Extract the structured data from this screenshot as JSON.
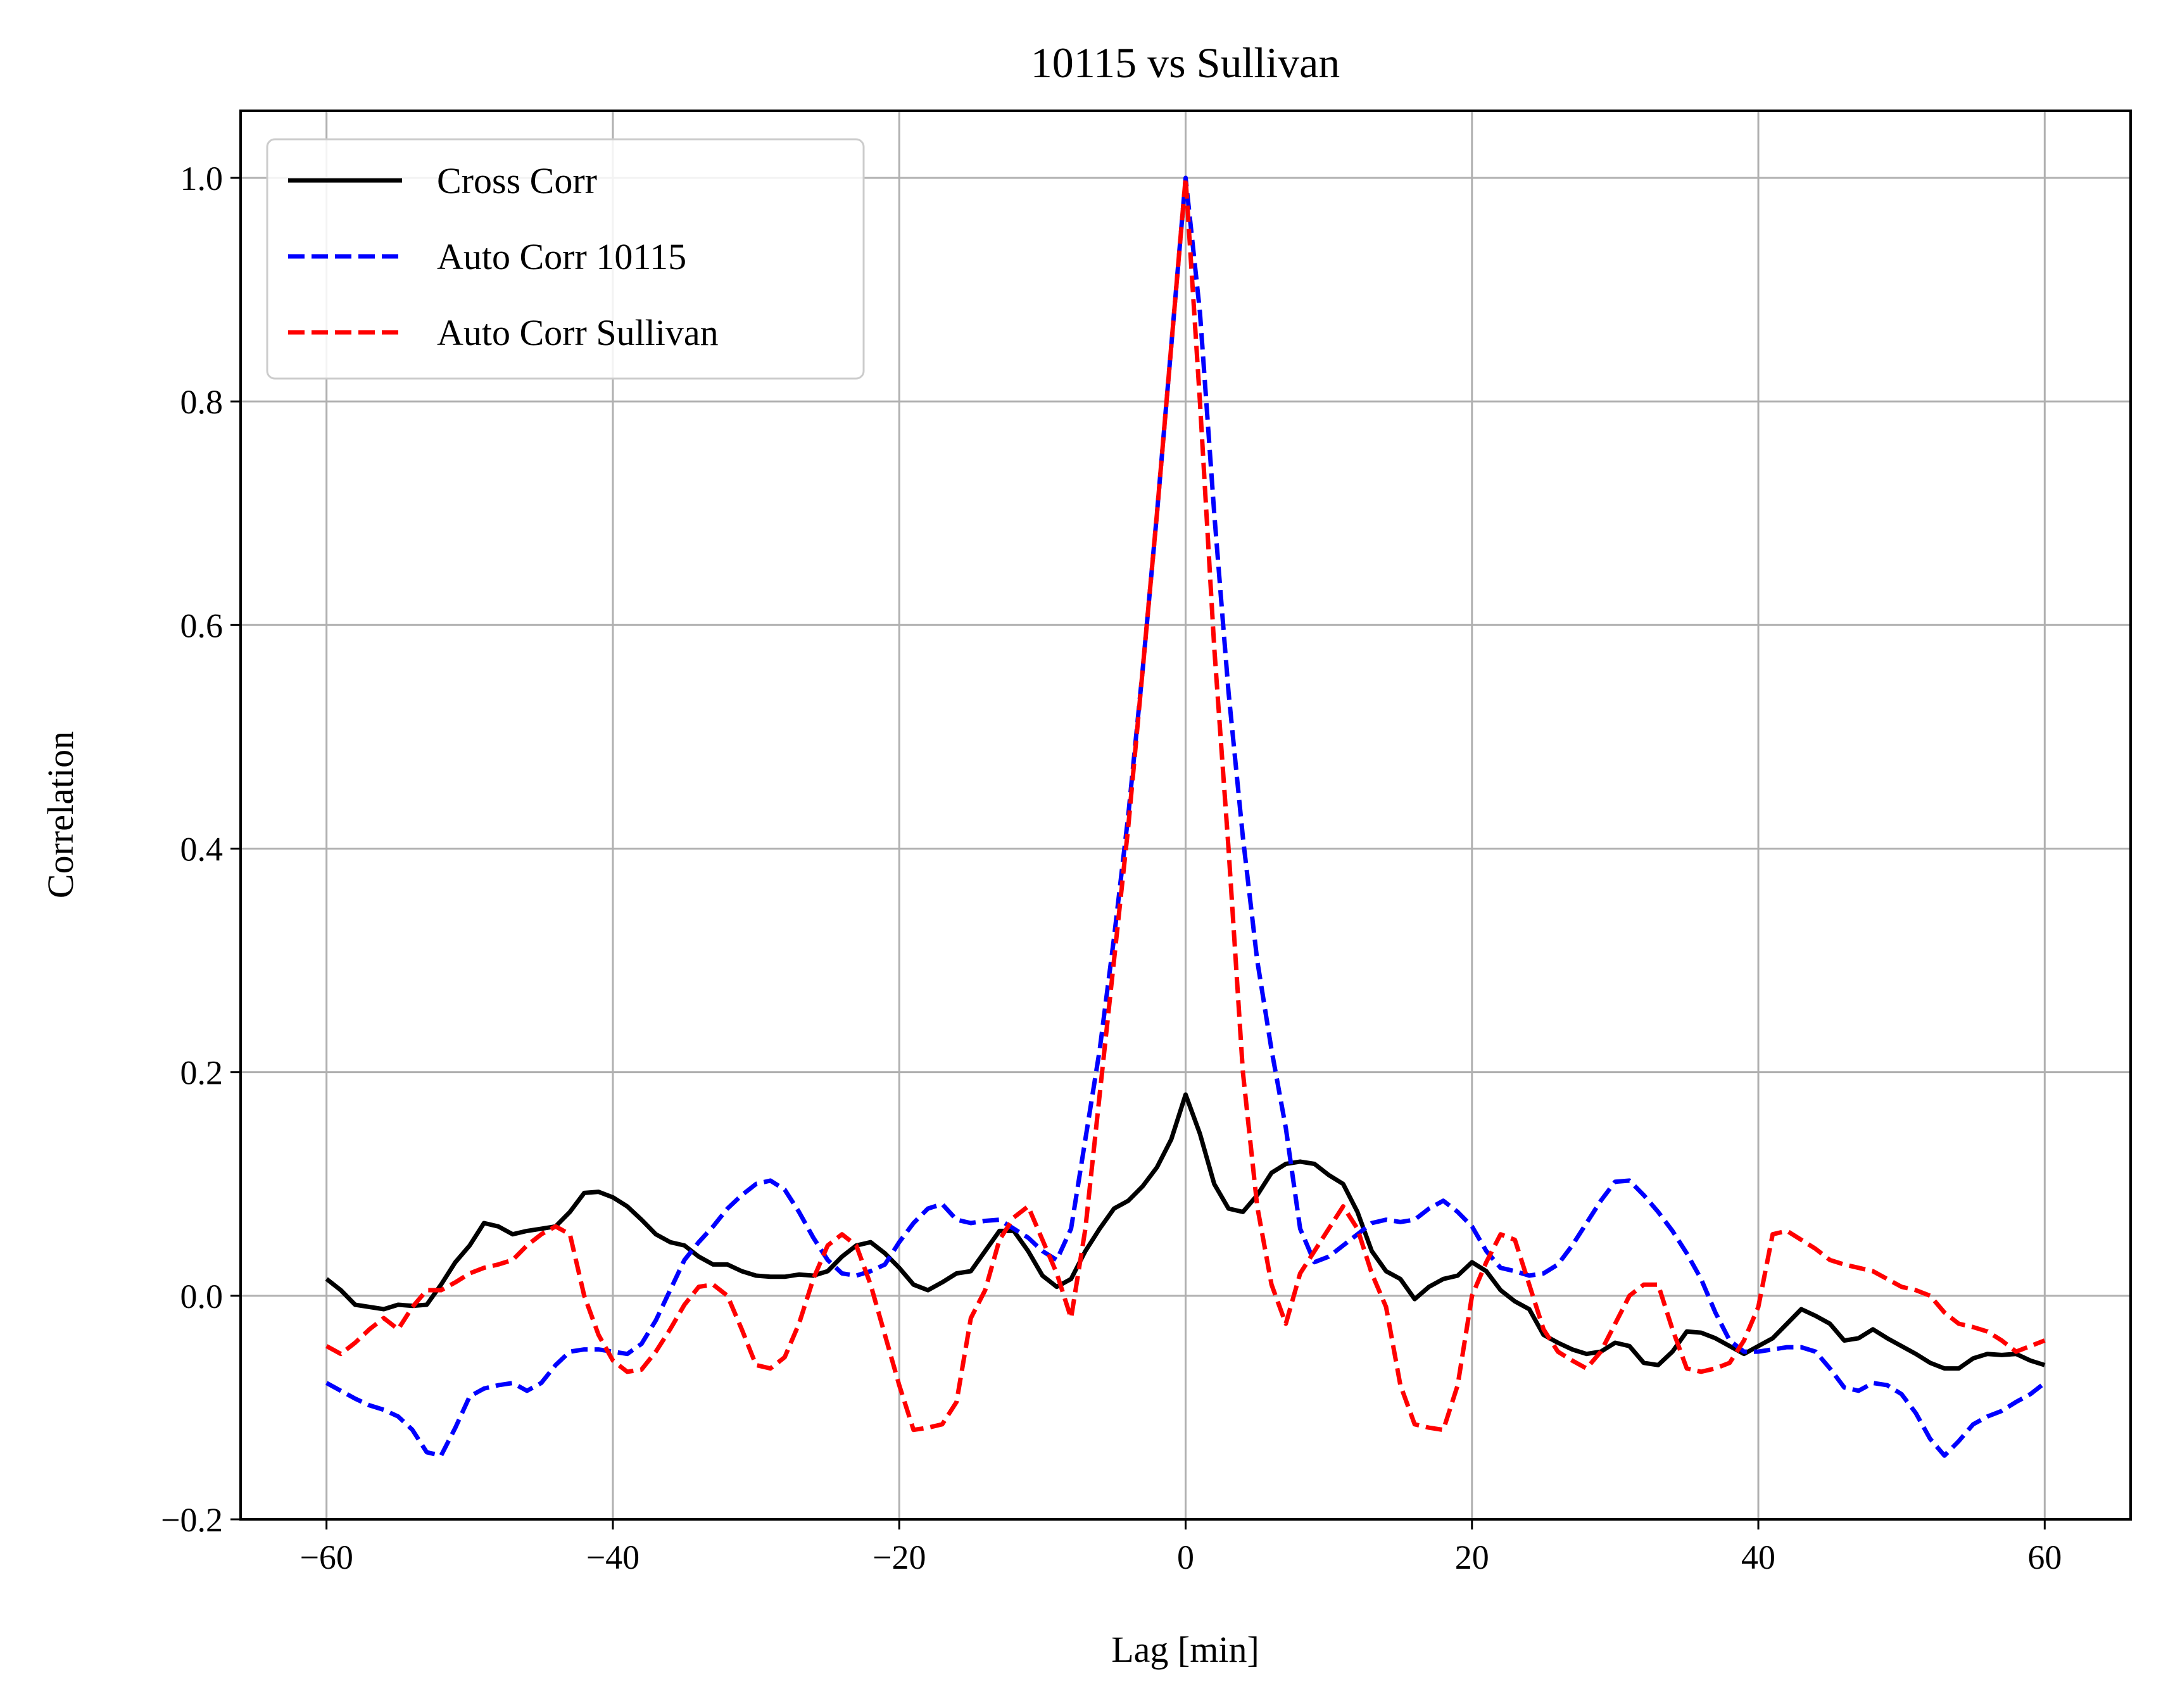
{
  "chart_data": {
    "type": "line",
    "title": "10115 vs Sullivan",
    "xlabel": "Lag [min]",
    "ylabel": "Correlation",
    "xlim": [
      -66,
      66
    ],
    "ylim": [
      -0.2,
      1.06
    ],
    "xticks": [
      -60,
      -40,
      -20,
      0,
      20,
      40,
      60
    ],
    "xtick_labels": [
      "−60",
      "−40",
      "−20",
      "0",
      "20",
      "40",
      "60"
    ],
    "yticks": [
      -0.2,
      0.0,
      0.2,
      0.4,
      0.6,
      0.8,
      1.0
    ],
    "ytick_labels": [
      "−0.2",
      "0.0",
      "0.2",
      "0.4",
      "0.6",
      "0.8",
      "1.0"
    ],
    "grid": true,
    "legend_position": "upper-left",
    "x": [
      -60,
      -59,
      -58,
      -57,
      -56,
      -55,
      -54,
      -53,
      -52,
      -51,
      -50,
      -49,
      -48,
      -47,
      -46,
      -45,
      -44,
      -43,
      -42,
      -41,
      -40,
      -39,
      -38,
      -37,
      -36,
      -35,
      -34,
      -33,
      -32,
      -31,
      -30,
      -29,
      -28,
      -27,
      -26,
      -25,
      -24,
      -23,
      -22,
      -21,
      -20,
      -19,
      -18,
      -17,
      -16,
      -15,
      -14,
      -13,
      -12,
      -11,
      -10,
      -9,
      -8,
      -7,
      -6,
      -5,
      -4,
      -3,
      -2,
      -1,
      0,
      1,
      2,
      3,
      4,
      5,
      6,
      7,
      8,
      9,
      10,
      11,
      12,
      13,
      14,
      15,
      16,
      17,
      18,
      19,
      20,
      21,
      22,
      23,
      24,
      25,
      26,
      27,
      28,
      29,
      30,
      31,
      32,
      33,
      34,
      35,
      36,
      37,
      38,
      39,
      40,
      41,
      42,
      43,
      44,
      45,
      46,
      47,
      48,
      49,
      50,
      51,
      52,
      53,
      54,
      55,
      56,
      57,
      58,
      59,
      60
    ],
    "series": [
      {
        "name": "Cross Corr",
        "color": "#000000",
        "dash": "solid",
        "values": [
          0.015,
          0.005,
          -0.008,
          -0.01,
          -0.012,
          -0.008,
          -0.009,
          -0.008,
          0.01,
          0.03,
          0.045,
          0.065,
          0.062,
          0.055,
          0.058,
          0.06,
          0.062,
          0.075,
          0.092,
          0.093,
          0.088,
          0.08,
          0.068,
          0.055,
          0.048,
          0.045,
          0.035,
          0.028,
          0.028,
          0.022,
          0.018,
          0.017,
          0.017,
          0.019,
          0.018,
          0.022,
          0.035,
          0.045,
          0.048,
          0.038,
          0.025,
          0.01,
          0.005,
          0.012,
          0.02,
          0.022,
          0.04,
          0.058,
          0.058,
          0.04,
          0.018,
          0.008,
          0.015,
          0.04,
          0.06,
          0.078,
          0.085,
          0.098,
          0.115,
          0.14,
          0.18,
          0.145,
          0.1,
          0.078,
          0.075,
          0.09,
          0.11,
          0.118,
          0.12,
          0.118,
          0.108,
          0.1,
          0.075,
          0.04,
          0.022,
          0.015,
          -0.003,
          0.008,
          0.015,
          0.018,
          0.03,
          0.022,
          0.005,
          -0.005,
          -0.012,
          -0.035,
          -0.042,
          -0.048,
          -0.052,
          -0.05,
          -0.042,
          -0.045,
          -0.06,
          -0.062,
          -0.05,
          -0.032,
          -0.033,
          -0.038,
          -0.045,
          -0.052,
          -0.045,
          -0.038,
          -0.025,
          -0.012,
          -0.018,
          -0.025,
          -0.04,
          -0.038,
          -0.03,
          -0.038,
          -0.045,
          -0.052,
          -0.06,
          -0.065,
          -0.065,
          -0.056,
          -0.052,
          -0.053,
          -0.052,
          -0.058,
          -0.062
        ]
      },
      {
        "name": "Auto Corr 10115",
        "color": "#0000ff",
        "dash": "dashed",
        "values": [
          -0.078,
          -0.085,
          -0.092,
          -0.098,
          -0.102,
          -0.108,
          -0.12,
          -0.14,
          -0.143,
          -0.118,
          -0.09,
          -0.083,
          -0.08,
          -0.078,
          -0.085,
          -0.078,
          -0.062,
          -0.05,
          -0.048,
          -0.048,
          -0.05,
          -0.052,
          -0.043,
          -0.022,
          0.005,
          0.032,
          0.048,
          0.062,
          0.078,
          0.09,
          0.1,
          0.103,
          0.095,
          0.075,
          0.052,
          0.032,
          0.02,
          0.018,
          0.022,
          0.028,
          0.048,
          0.065,
          0.078,
          0.082,
          0.068,
          0.065,
          0.067,
          0.068,
          0.06,
          0.052,
          0.04,
          0.032,
          0.06,
          0.14,
          0.22,
          0.32,
          0.43,
          0.56,
          0.7,
          0.85,
          1.0,
          0.88,
          0.7,
          0.54,
          0.41,
          0.3,
          0.22,
          0.15,
          0.06,
          0.03,
          0.035,
          0.045,
          0.055,
          0.065,
          0.068,
          0.066,
          0.068,
          0.078,
          0.085,
          0.075,
          0.062,
          0.04,
          0.025,
          0.022,
          0.018,
          0.02,
          0.028,
          0.045,
          0.065,
          0.085,
          0.102,
          0.103,
          0.09,
          0.075,
          0.058,
          0.038,
          0.015,
          -0.015,
          -0.04,
          -0.05,
          -0.05,
          -0.048,
          -0.046,
          -0.046,
          -0.05,
          -0.065,
          -0.082,
          -0.085,
          -0.078,
          -0.08,
          -0.088,
          -0.105,
          -0.128,
          -0.143,
          -0.13,
          -0.115,
          -0.108,
          -0.103,
          -0.095,
          -0.088,
          -0.078
        ]
      },
      {
        "name": "Auto Corr Sullivan",
        "color": "#ff0000",
        "dash": "dashed",
        "values": [
          -0.045,
          -0.052,
          -0.042,
          -0.03,
          -0.02,
          -0.03,
          -0.01,
          0.005,
          0.005,
          0.012,
          0.02,
          0.025,
          0.028,
          0.032,
          0.045,
          0.055,
          0.062,
          0.055,
          0.0,
          -0.035,
          -0.058,
          -0.068,
          -0.066,
          -0.05,
          -0.03,
          -0.008,
          0.008,
          0.01,
          0.0,
          -0.03,
          -0.062,
          -0.065,
          -0.055,
          -0.025,
          0.015,
          0.045,
          0.055,
          0.045,
          0.01,
          -0.035,
          -0.08,
          -0.12,
          -0.118,
          -0.115,
          -0.095,
          -0.02,
          0.005,
          0.05,
          0.07,
          0.08,
          0.05,
          0.02,
          -0.02,
          0.06,
          0.18,
          0.3,
          0.42,
          0.56,
          0.7,
          0.85,
          1.0,
          0.8,
          0.58,
          0.4,
          0.2,
          0.08,
          0.01,
          -0.025,
          0.02,
          0.04,
          0.06,
          0.08,
          0.06,
          0.02,
          -0.01,
          -0.08,
          -0.115,
          -0.118,
          -0.12,
          -0.08,
          0.0,
          0.03,
          0.055,
          0.05,
          0.01,
          -0.03,
          -0.05,
          -0.058,
          -0.065,
          -0.05,
          -0.025,
          0.0,
          0.01,
          0.01,
          -0.03,
          -0.065,
          -0.068,
          -0.065,
          -0.06,
          -0.04,
          -0.01,
          0.055,
          0.058,
          0.05,
          0.042,
          0.032,
          0.028,
          0.025,
          0.022,
          0.015,
          0.008,
          0.005,
          0.0,
          -0.015,
          -0.025,
          -0.028,
          -0.032,
          -0.04,
          -0.05,
          -0.045,
          -0.04
        ]
      }
    ]
  }
}
